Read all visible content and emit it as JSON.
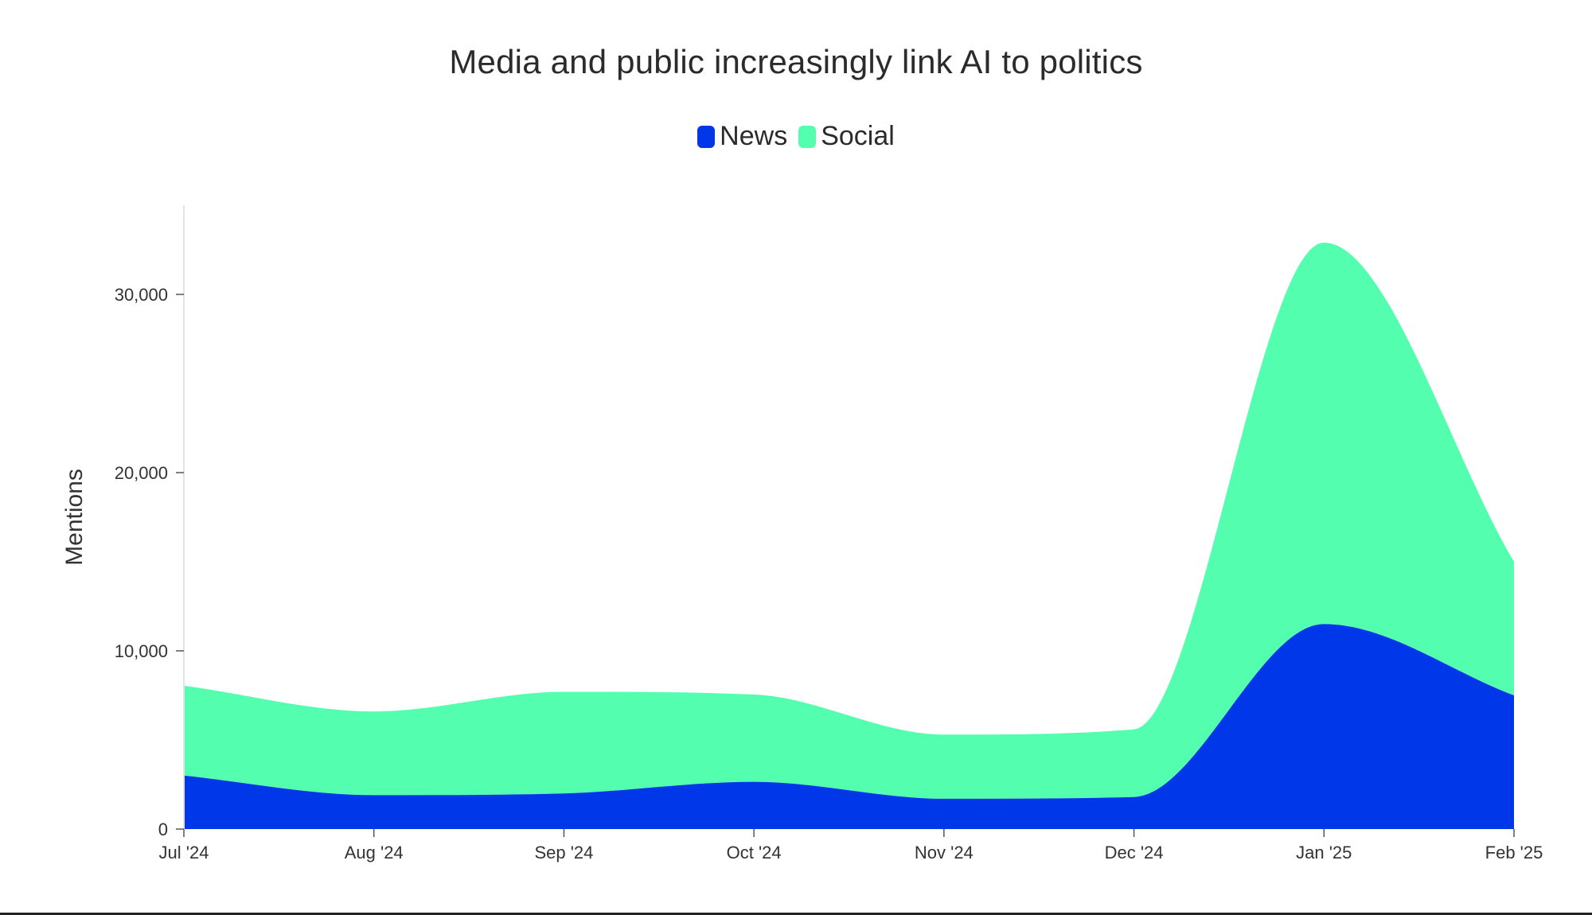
{
  "chart_data": {
    "type": "area",
    "stacked": true,
    "title": "Media and public increasingly link AI to politics",
    "ylabel": "Mentions",
    "xlabel": "",
    "x": [
      "Jul '24",
      "Aug '24",
      "Sep '24",
      "Oct '24",
      "Nov '24",
      "Dec '24",
      "Jan '25",
      "Feb '25"
    ],
    "series": [
      {
        "name": "News",
        "color": "#0037E8",
        "values": [
          3000,
          1900,
          2000,
          2650,
          1700,
          1800,
          11500,
          7500
        ]
      },
      {
        "name": "Social",
        "color": "#53FFAE",
        "values": [
          5050,
          4700,
          5700,
          4900,
          3600,
          3800,
          21400,
          7500
        ]
      }
    ],
    "ylim": [
      0,
      35000
    ],
    "yticks": [
      0,
      10000,
      20000,
      30000
    ],
    "ytick_labels": [
      "0",
      "10,000",
      "20,000",
      "30,000"
    ],
    "grid": false,
    "legend_position": "top-center"
  }
}
